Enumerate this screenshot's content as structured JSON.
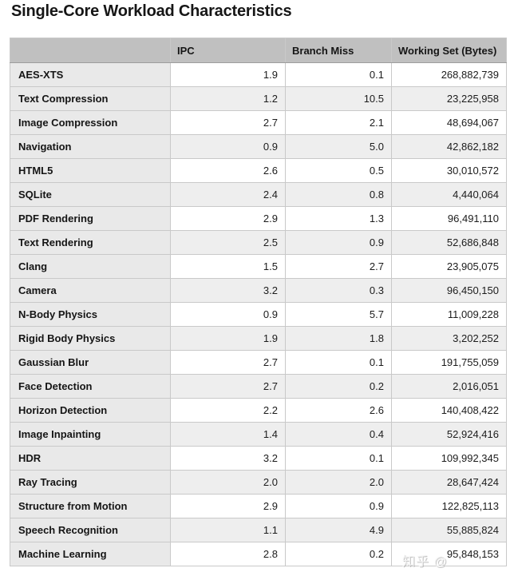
{
  "page": {
    "title": "Single-Core Workload Characteristics"
  },
  "colors": {
    "header_bg": "#c0c0c0",
    "row_header_bg": "#e9e9e9",
    "stripe_bg": "#eeeeee",
    "border": "#c9c9c9",
    "text": "#1c1c1c"
  },
  "watermark": {
    "text": "知乎 @"
  },
  "table": {
    "columns": [
      "",
      "IPC",
      "Branch Miss",
      "Working Set (Bytes)"
    ],
    "rows": [
      {
        "workload": "AES-XTS",
        "ipc": "1.9",
        "branch_miss": "0.1",
        "working_set": "268,882,739"
      },
      {
        "workload": "Text Compression",
        "ipc": "1.2",
        "branch_miss": "10.5",
        "working_set": "23,225,958"
      },
      {
        "workload": "Image Compression",
        "ipc": "2.7",
        "branch_miss": "2.1",
        "working_set": "48,694,067"
      },
      {
        "workload": "Navigation",
        "ipc": "0.9",
        "branch_miss": "5.0",
        "working_set": "42,862,182"
      },
      {
        "workload": "HTML5",
        "ipc": "2.6",
        "branch_miss": "0.5",
        "working_set": "30,010,572"
      },
      {
        "workload": "SQLite",
        "ipc": "2.4",
        "branch_miss": "0.8",
        "working_set": "4,440,064"
      },
      {
        "workload": "PDF Rendering",
        "ipc": "2.9",
        "branch_miss": "1.3",
        "working_set": "96,491,110"
      },
      {
        "workload": "Text Rendering",
        "ipc": "2.5",
        "branch_miss": "0.9",
        "working_set": "52,686,848"
      },
      {
        "workload": "Clang",
        "ipc": "1.5",
        "branch_miss": "2.7",
        "working_set": "23,905,075"
      },
      {
        "workload": "Camera",
        "ipc": "3.2",
        "branch_miss": "0.3",
        "working_set": "96,450,150"
      },
      {
        "workload": "N-Body Physics",
        "ipc": "0.9",
        "branch_miss": "5.7",
        "working_set": "11,009,228"
      },
      {
        "workload": "Rigid Body Physics",
        "ipc": "1.9",
        "branch_miss": "1.8",
        "working_set": "3,202,252"
      },
      {
        "workload": "Gaussian Blur",
        "ipc": "2.7",
        "branch_miss": "0.1",
        "working_set": "191,755,059"
      },
      {
        "workload": "Face Detection",
        "ipc": "2.7",
        "branch_miss": "0.2",
        "working_set": "2,016,051"
      },
      {
        "workload": "Horizon Detection",
        "ipc": "2.2",
        "branch_miss": "2.6",
        "working_set": "140,408,422"
      },
      {
        "workload": "Image Inpainting",
        "ipc": "1.4",
        "branch_miss": "0.4",
        "working_set": "52,924,416"
      },
      {
        "workload": "HDR",
        "ipc": "3.2",
        "branch_miss": "0.1",
        "working_set": "109,992,345"
      },
      {
        "workload": "Ray Tracing",
        "ipc": "2.0",
        "branch_miss": "2.0",
        "working_set": "28,647,424"
      },
      {
        "workload": "Structure from Motion",
        "ipc": "2.9",
        "branch_miss": "0.9",
        "working_set": "122,825,113"
      },
      {
        "workload": "Speech Recognition",
        "ipc": "1.1",
        "branch_miss": "4.9",
        "working_set": "55,885,824"
      },
      {
        "workload": "Machine Learning",
        "ipc": "2.8",
        "branch_miss": "0.2",
        "working_set": "95,848,153"
      }
    ]
  }
}
